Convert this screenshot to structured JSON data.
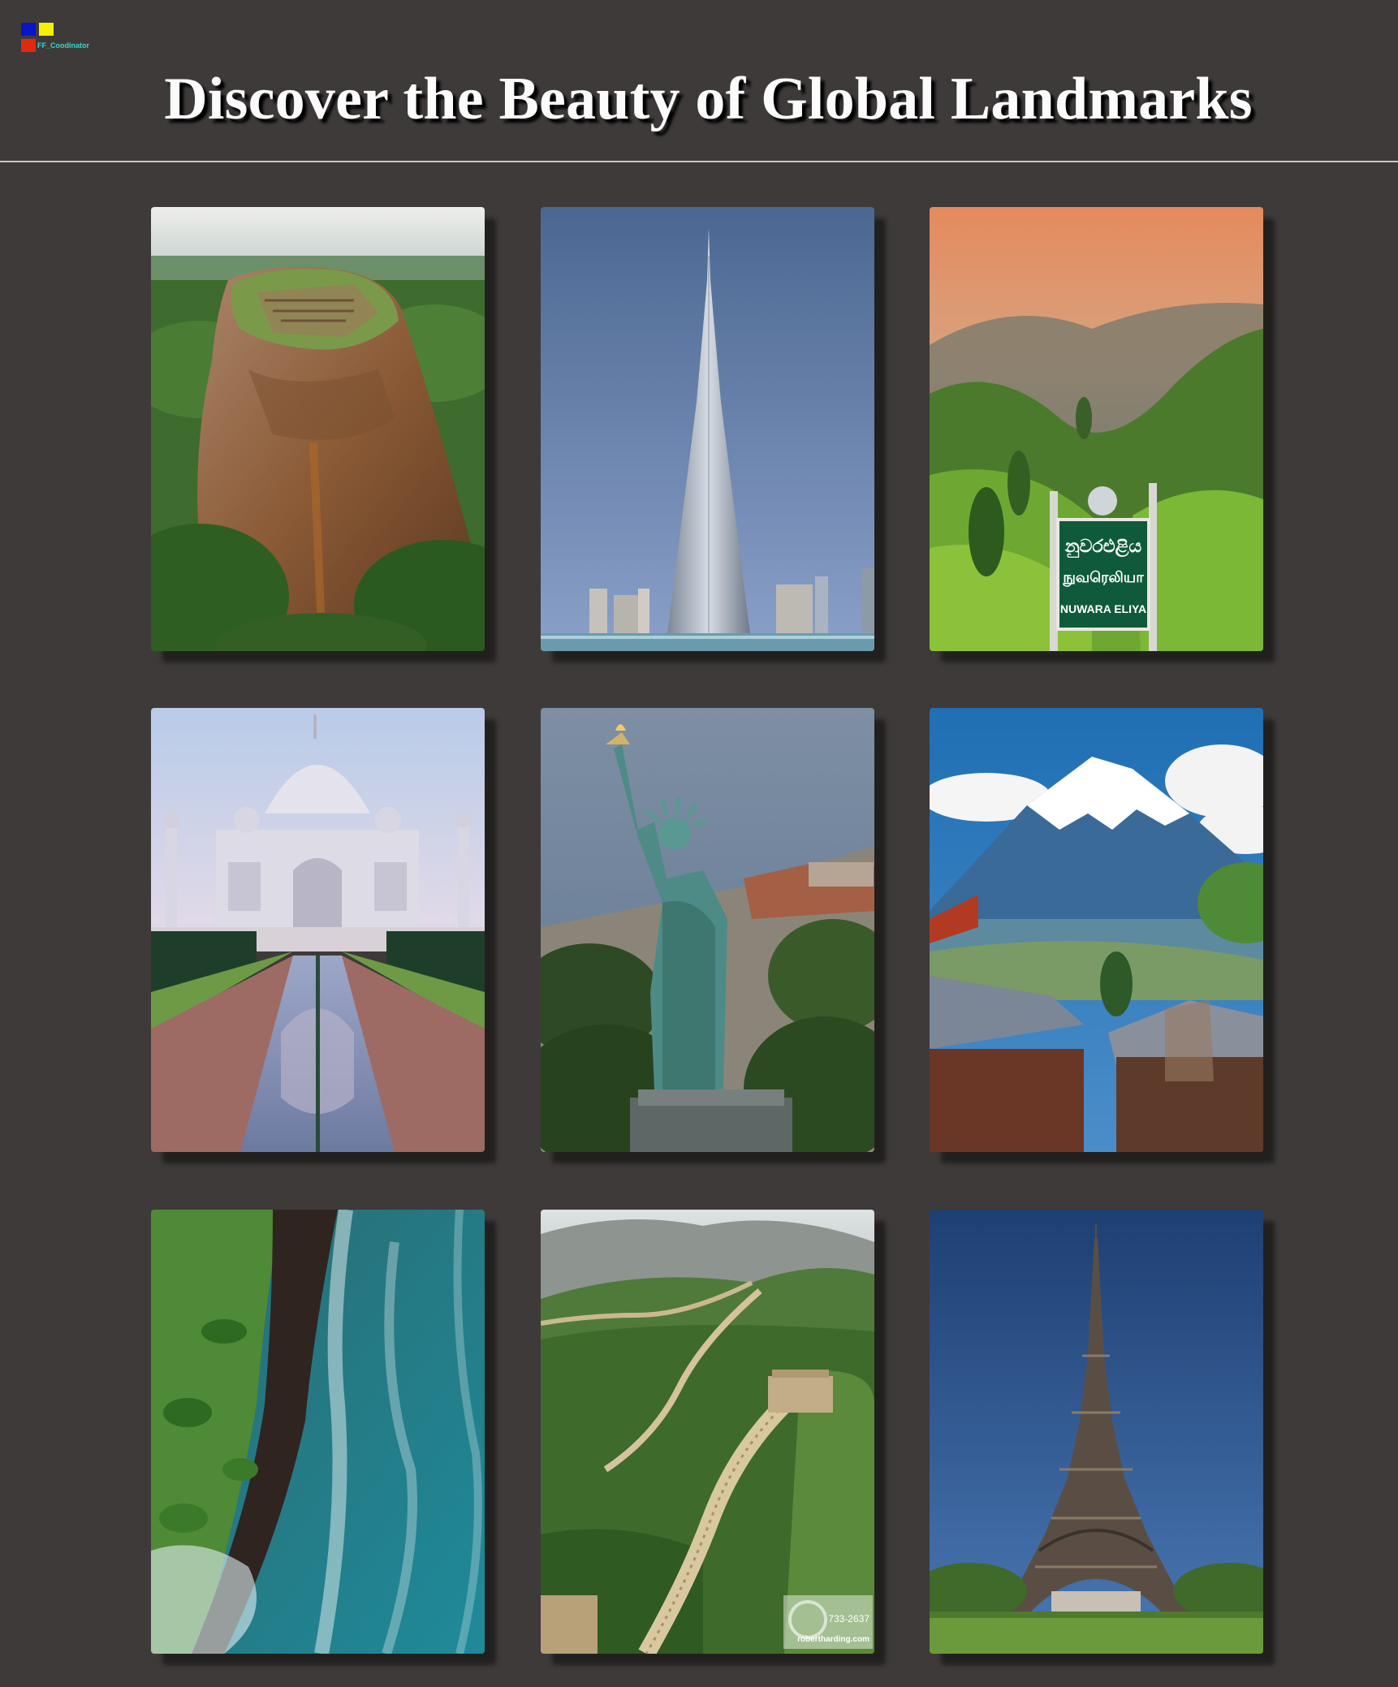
{
  "app": {
    "logo_text": "FF_Coodinator"
  },
  "header": {
    "title": "Discover the Beauty of Global Landmarks"
  },
  "gallery": {
    "cards": [
      {
        "id": "sigiriya",
        "alt": "Sigiriya rock fortress"
      },
      {
        "id": "burj-khalifa",
        "alt": "Burj Khalifa"
      },
      {
        "id": "nuwara-eliya",
        "alt": "Nuwara Eliya tea hills",
        "sign": {
          "line1": "නුවරඑළිය",
          "line2": "நுவரெலியா",
          "line3": "NUWARA ELIYA"
        }
      },
      {
        "id": "taj-mahal",
        "alt": "Taj Mahal"
      },
      {
        "id": "statue-of-liberty",
        "alt": "Statue of Liberty"
      },
      {
        "id": "mount-fuji",
        "alt": "Mount Fuji"
      },
      {
        "id": "coastline",
        "alt": "Tropical coastline"
      },
      {
        "id": "great-wall",
        "alt": "Great Wall of China",
        "watermark": {
          "code": "733-2637",
          "site": "robertharding.com"
        }
      },
      {
        "id": "eiffel-tower",
        "alt": "Eiffel Tower"
      }
    ]
  },
  "colors": {
    "background": "#3e3a39",
    "title": "#fbfbfb",
    "divider": "#c9c6c4"
  }
}
